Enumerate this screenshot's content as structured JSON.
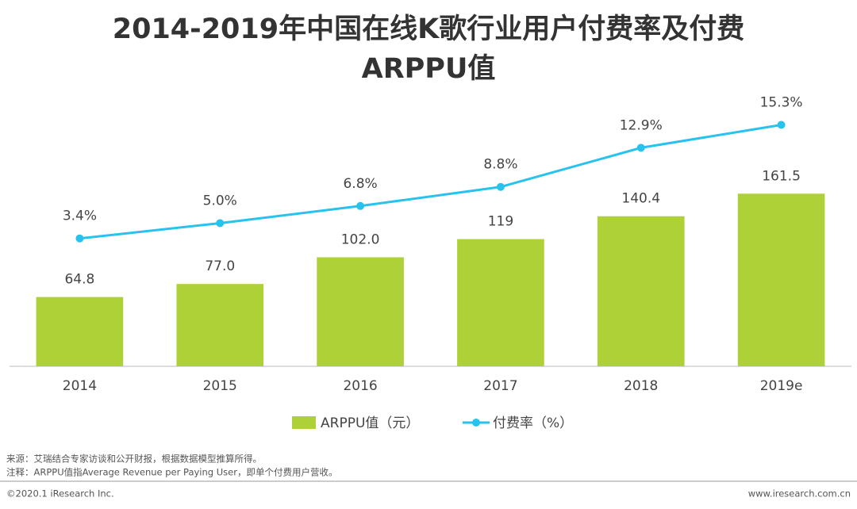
{
  "chart_data": {
    "type": "bar-line",
    "title": "2014-2019年中国在线K歌行业用户付费率及付费ARPPU值",
    "categories": [
      "2014",
      "2015",
      "2016",
      "2017",
      "2018",
      "2019e"
    ],
    "series": [
      {
        "name": "ARPPU值（元）",
        "color": "#add136",
        "values": [
          64.8,
          77.0,
          102.0,
          119,
          140.4,
          161.5
        ],
        "value_labels": [
          "64.8",
          "77.0",
          "102.0",
          "119",
          "140.4",
          "161.5"
        ]
      },
      {
        "name": "付费率（%）",
        "color": "#27c2ee",
        "axis": "y2",
        "values": [
          3.4,
          5.0,
          6.8,
          8.8,
          12.9,
          15.3
        ],
        "value_labels": [
          "3.4%",
          "5.0%",
          "6.8%",
          "8.8%",
          "12.9%",
          "15.3%"
        ]
      }
    ],
    "ylim": [
      0,
      250
    ],
    "y2lim": [
      -10,
      18
    ],
    "notes": [
      "来源：艾瑞结合专家访谈和公开财报，根据数据模型推算所得。",
      "注释：ARPPU值指Average Revenue per Paying User，即单个付费用户营收。"
    ],
    "footer_left": "©2020.1 iResearch Inc.",
    "footer_right": "www.iresearch.com.cn"
  }
}
